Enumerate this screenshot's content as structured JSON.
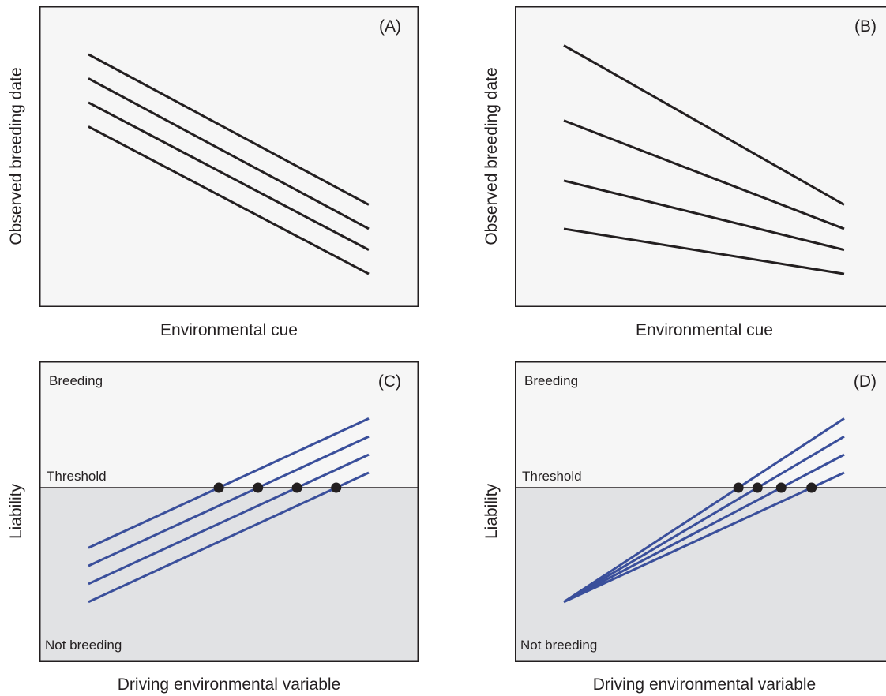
{
  "panels": {
    "a": {
      "letter": "(A)",
      "xlabel": "Environmental cue",
      "ylabel": "Observed breeding date",
      "lines": [
        {
          "start": 0.84,
          "end": 0.34
        },
        {
          "start": 0.76,
          "end": 0.26
        },
        {
          "start": 0.68,
          "end": 0.19
        },
        {
          "start": 0.6,
          "end": 0.11
        }
      ]
    },
    "b": {
      "letter": "(B)",
      "xlabel": "Environmental cue",
      "ylabel": "Observed breeding date",
      "lines": [
        {
          "start": 0.87,
          "end": 0.34
        },
        {
          "start": 0.62,
          "end": 0.26
        },
        {
          "start": 0.42,
          "end": 0.19
        },
        {
          "start": 0.26,
          "end": 0.11
        }
      ]
    },
    "c": {
      "letter": "(C)",
      "xlabel": "Driving environmental variable",
      "ylabel": "Liability",
      "breeding_label": "Breeding",
      "not_breeding_label": "Not breeding",
      "threshold_label": "Threshold",
      "threshold": 0.58,
      "lines": [
        {
          "start": 0.38,
          "end": 0.81
        },
        {
          "start": 0.32,
          "end": 0.75
        },
        {
          "start": 0.26,
          "end": 0.69
        },
        {
          "start": 0.2,
          "end": 0.63
        }
      ]
    },
    "d": {
      "letter": "(D)",
      "xlabel": "Driving environmental variable",
      "ylabel": "Liability",
      "breeding_label": "Breeding",
      "not_breeding_label": "Not breeding",
      "threshold_label": "Threshold",
      "threshold": 0.58,
      "lines": [
        {
          "start": 0.2,
          "end": 0.81
        },
        {
          "start": 0.2,
          "end": 0.75
        },
        {
          "start": 0.2,
          "end": 0.69
        },
        {
          "start": 0.2,
          "end": 0.63
        }
      ]
    }
  },
  "colors": {
    "background": "#f6f6f6",
    "below_threshold": "#e1e2e4",
    "response_lines_cue": "#231f20",
    "response_lines_liability": "#3a4f9b",
    "threshold_points": "#231f20"
  }
}
